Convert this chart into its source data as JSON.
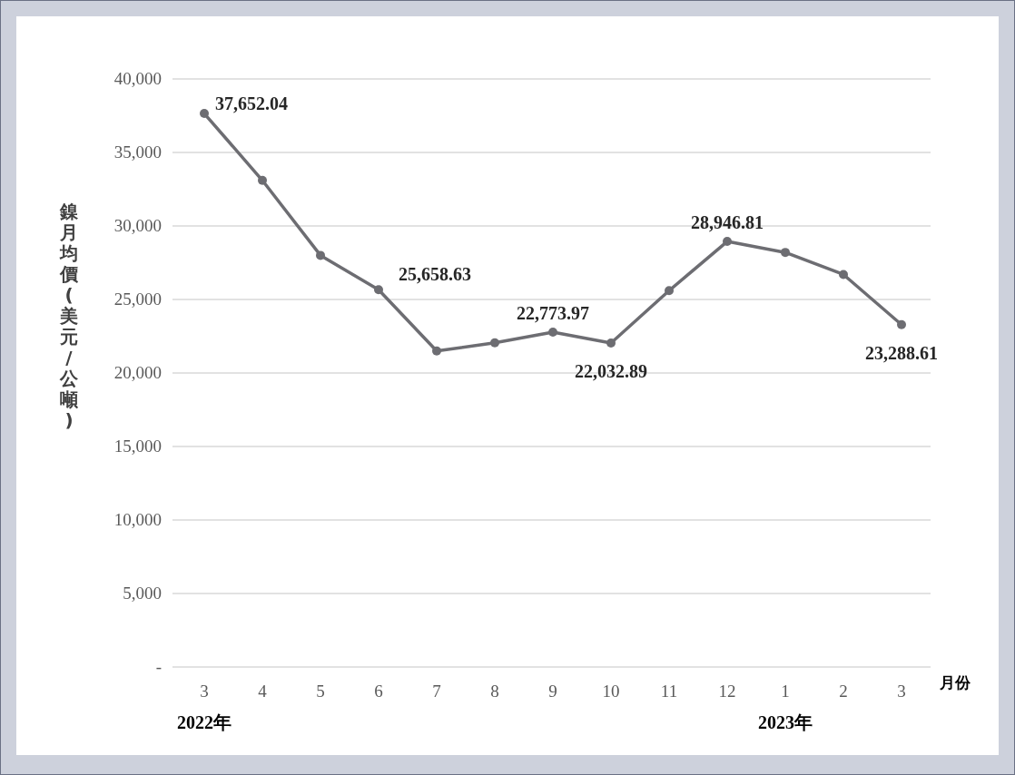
{
  "chart_data": {
    "type": "line",
    "ylabel": "鎳月均價(美元/公噸)",
    "xlabel": "月份",
    "categories": [
      "3",
      "4",
      "5",
      "6",
      "7",
      "8",
      "9",
      "10",
      "11",
      "12",
      "1",
      "2",
      "3"
    ],
    "values": [
      37652.04,
      33100,
      28000,
      25658.63,
      21500,
      22050,
      22773.97,
      22032.89,
      25600,
      28946.81,
      28200,
      26700,
      23288.61
    ],
    "value_labels": [
      "37,652.04",
      null,
      null,
      "25,658.63",
      null,
      null,
      "22,773.97",
      "22,032.89",
      null,
      "28,946.81",
      null,
      null,
      "23,288.61"
    ],
    "color": "#6d6d72",
    "marker": "circle",
    "grid": "y",
    "ylim": [
      0,
      40000
    ],
    "yticks": [
      {
        "value": 0,
        "label": "-"
      },
      {
        "value": 5000,
        "label": "5,000"
      },
      {
        "value": 10000,
        "label": "10,000"
      },
      {
        "value": 15000,
        "label": "15,000"
      },
      {
        "value": 20000,
        "label": "20,000"
      },
      {
        "value": 25000,
        "label": "25,000"
      },
      {
        "value": 30000,
        "label": "30,000"
      },
      {
        "value": 35000,
        "label": "35,000"
      },
      {
        "value": 40000,
        "label": "40,000"
      }
    ],
    "annotations": [
      "2022年",
      "2023年"
    ]
  }
}
